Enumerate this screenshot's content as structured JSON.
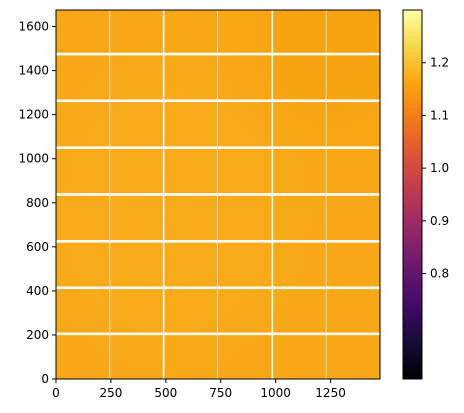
{
  "chart_data": {
    "type": "heatmap",
    "title": "",
    "xlabel": "",
    "ylabel": "",
    "xlim": [
      0,
      1475
    ],
    "ylim": [
      0,
      1675
    ],
    "x_ticks": [
      0,
      250,
      500,
      750,
      1000,
      1250
    ],
    "y_ticks": [
      0,
      200,
      400,
      600,
      800,
      1000,
      1200,
      1400,
      1600
    ],
    "colormap": "inferno",
    "image_value_range": [
      1.03,
      1.12
    ],
    "dominant_color": "#f8a816",
    "panel_gap_rows": [
      205,
      414,
      625,
      838,
      1050,
      1263,
      1475
    ],
    "panel_gap_columns": [
      245,
      490,
      735,
      985,
      1230
    ],
    "colorbar": {
      "vmin": 0.6,
      "vmax": 1.3,
      "ticks": [
        0.8,
        0.9,
        1.0,
        1.1,
        1.2
      ],
      "tick_labels": [
        "0.8",
        "0.9",
        "1.0",
        "1.1",
        "1.2"
      ]
    }
  }
}
